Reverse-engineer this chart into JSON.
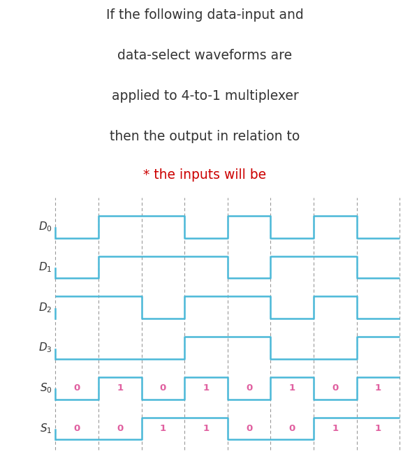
{
  "title_lines": [
    "If the following data-input and",
    "data-select waveforms are",
    "applied to 4-to-1 multiplexer",
    "then the output in relation to"
  ],
  "subtitle": "* the inputs will be",
  "subtitle_color": "#cc0000",
  "title_color": "#333333",
  "bg_color": "#ffffff",
  "wave_color": "#4ab8d8",
  "dashed_color": "#999999",
  "label_color": "#e060a0",
  "signals": {
    "D0": [
      0,
      1,
      1,
      0,
      1,
      0,
      1,
      0
    ],
    "D1": [
      0,
      1,
      1,
      1,
      0,
      1,
      1,
      0
    ],
    "D2": [
      1,
      1,
      0,
      1,
      1,
      0,
      1,
      0
    ],
    "D3": [
      0,
      0,
      0,
      1,
      1,
      0,
      0,
      1
    ],
    "S0": [
      0,
      1,
      0,
      1,
      0,
      1,
      0,
      1
    ],
    "S1": [
      0,
      0,
      1,
      1,
      0,
      0,
      1,
      1
    ]
  },
  "signal_order": [
    "D0",
    "D1",
    "D2",
    "D3",
    "S0",
    "S1"
  ],
  "n_slots": 8
}
